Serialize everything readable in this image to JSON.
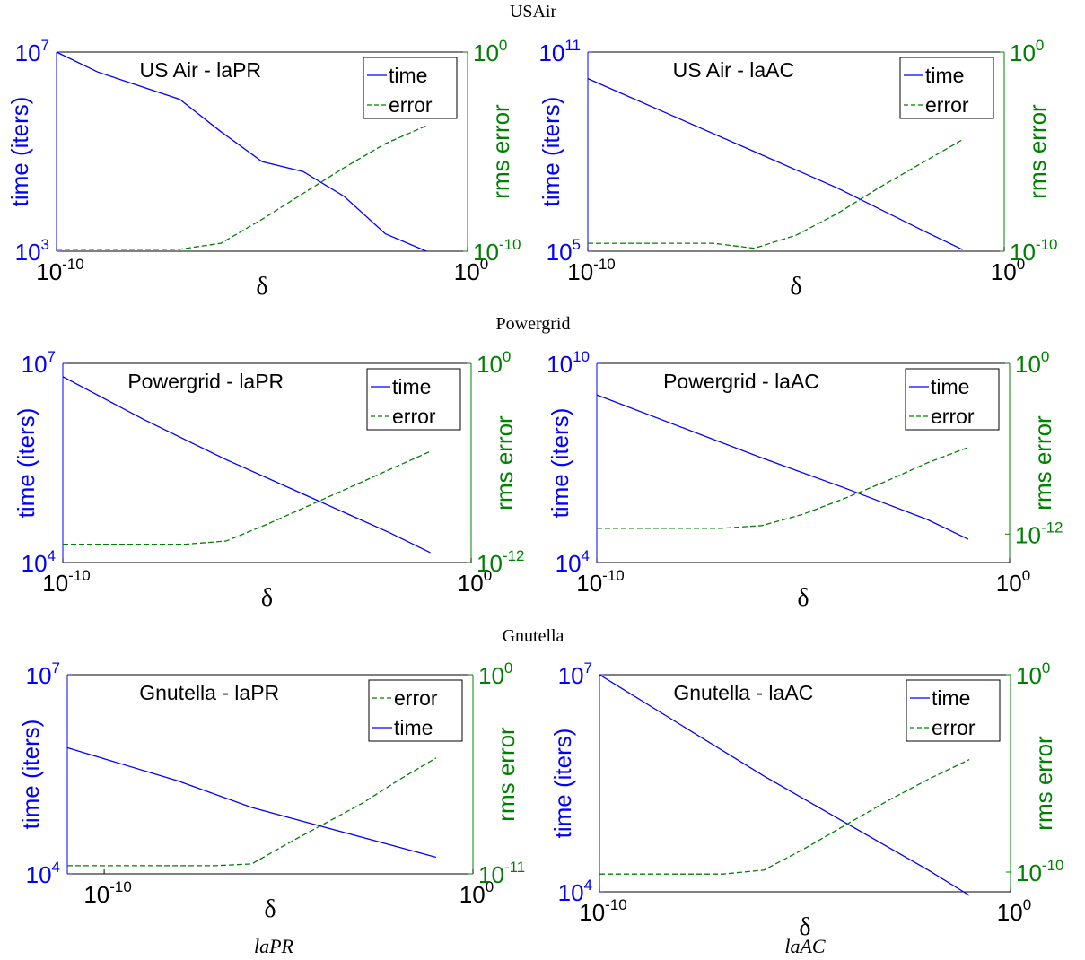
{
  "captions": {
    "columns": [
      "laPR",
      "laAC"
    ]
  },
  "rows": [
    "USAir",
    "Powergrid",
    "Gnutella"
  ],
  "colors": {
    "time": "#0000ff",
    "error": "#008000",
    "axis": "#000000"
  },
  "chart_data": [
    {
      "type": "line",
      "title": "US Air - laPR",
      "row_title": "USAir",
      "xlabel": "δ",
      "ylabel_left": "time (iters)",
      "ylabel_right": "rms error",
      "x_log": true,
      "xlim": [
        -10,
        0
      ],
      "x_ticks": [
        {
          "e": -10,
          "label": "10",
          "sup": "-10"
        },
        {
          "e": 0,
          "label": "10",
          "sup": "0"
        }
      ],
      "y_left_lim": [
        3,
        7
      ],
      "y_left_ticks": [
        {
          "e": 7,
          "label": "10",
          "sup": "7"
        },
        {
          "e": 3,
          "label": "10",
          "sup": "3"
        }
      ],
      "y_right_lim": [
        -10,
        0
      ],
      "y_right_ticks": [
        {
          "e": 0,
          "label": "10",
          "sup": "0"
        },
        {
          "e": -10,
          "label": "10",
          "sup": "-10"
        }
      ],
      "legend": [
        "time",
        "error"
      ],
      "legend_position": "top-right",
      "series": [
        {
          "name": "time",
          "axis": "left",
          "style": "solid",
          "x": [
            -10,
            -9,
            -7,
            -6,
            -5,
            -4,
            -3,
            -2,
            -1
          ],
          "y": [
            7.0,
            6.6,
            6.05,
            5.4,
            4.8,
            4.6,
            4.1,
            3.35,
            3.0
          ]
        },
        {
          "name": "error",
          "axis": "right",
          "style": "dashed",
          "x": [
            -10,
            -7,
            -6,
            -5,
            -4,
            -3,
            -2,
            -1
          ],
          "y": [
            -9.9,
            -9.9,
            -9.6,
            -8.4,
            -7.1,
            -5.8,
            -4.6,
            -3.7
          ]
        }
      ]
    },
    {
      "type": "line",
      "title": "US Air - laAC",
      "row_title": "USAir",
      "xlabel": "δ",
      "ylabel_left": "time (iters)",
      "ylabel_right": "rms error",
      "x_log": true,
      "xlim": [
        -10,
        0
      ],
      "x_ticks": [
        {
          "e": -10,
          "label": "10",
          "sup": "-10"
        },
        {
          "e": 0,
          "label": "10",
          "sup": "0"
        }
      ],
      "y_left_lim": [
        5,
        11
      ],
      "y_left_ticks": [
        {
          "e": 11,
          "label": "10",
          "sup": "11"
        },
        {
          "e": 5,
          "label": "10",
          "sup": "5"
        }
      ],
      "y_right_lim": [
        -10,
        0
      ],
      "y_right_ticks": [
        {
          "e": 0,
          "label": "10",
          "sup": "0"
        },
        {
          "e": -10,
          "label": "10",
          "sup": "-10"
        }
      ],
      "legend": [
        "time",
        "error"
      ],
      "legend_position": "top-right",
      "series": [
        {
          "name": "time",
          "axis": "left",
          "style": "solid",
          "x": [
            -10,
            -8,
            -6,
            -4,
            -2,
            -1
          ],
          "y": [
            10.2,
            9.1,
            8.0,
            6.9,
            5.65,
            5.05
          ]
        },
        {
          "name": "error",
          "axis": "right",
          "style": "dashed",
          "x": [
            -10,
            -8,
            -7,
            -6,
            -5,
            -4,
            -3,
            -2,
            -1
          ],
          "y": [
            -9.6,
            -9.6,
            -9.6,
            -9.85,
            -9.2,
            -8.1,
            -6.8,
            -5.6,
            -4.4
          ]
        }
      ]
    },
    {
      "type": "line",
      "title": "Powergrid - laPR",
      "row_title": "Powergrid",
      "xlabel": "δ",
      "ylabel_left": "time (iters)",
      "ylabel_right": "rms error",
      "x_log": true,
      "xlim": [
        -10,
        0
      ],
      "x_ticks": [
        {
          "e": -10,
          "label": "10",
          "sup": "-10"
        },
        {
          "e": 0,
          "label": "10",
          "sup": "0"
        }
      ],
      "y_left_lim": [
        4,
        7
      ],
      "y_left_ticks": [
        {
          "e": 7,
          "label": "10",
          "sup": "7"
        },
        {
          "e": 4,
          "label": "10",
          "sup": "4"
        }
      ],
      "y_right_lim": [
        -12,
        0
      ],
      "y_right_ticks": [
        {
          "e": 0,
          "label": "10",
          "sup": "0"
        },
        {
          "e": -12,
          "label": "10",
          "sup": "-12"
        }
      ],
      "legend": [
        "time",
        "error"
      ],
      "legend_position": "top-right",
      "series": [
        {
          "name": "time",
          "axis": "left",
          "style": "solid",
          "x": [
            -10,
            -8,
            -6,
            -4,
            -2,
            -1
          ],
          "y": [
            6.8,
            6.15,
            5.55,
            5.0,
            4.45,
            4.15
          ]
        },
        {
          "name": "error",
          "axis": "right",
          "style": "dashed",
          "x": [
            -10,
            -7,
            -6,
            -5,
            -4,
            -3,
            -2,
            -1
          ],
          "y": [
            -10.9,
            -10.9,
            -10.7,
            -9.7,
            -8.6,
            -7.5,
            -6.4,
            -5.3
          ]
        }
      ]
    },
    {
      "type": "line",
      "title": "Powergrid - laAC",
      "row_title": "Powergrid",
      "xlabel": "δ",
      "ylabel_left": "time (iters)",
      "ylabel_right": "rms error",
      "x_log": true,
      "xlim": [
        -10,
        0
      ],
      "x_ticks": [
        {
          "e": -10,
          "label": "10",
          "sup": "-10"
        },
        {
          "e": 0,
          "label": "10",
          "sup": "0"
        }
      ],
      "y_left_lim": [
        4,
        10
      ],
      "y_left_ticks": [
        {
          "e": 10,
          "label": "10",
          "sup": "10"
        },
        {
          "e": 4,
          "label": "10",
          "sup": "4"
        }
      ],
      "y_right_lim": [
        -14,
        0
      ],
      "y_right_ticks": [
        {
          "e": 0,
          "label": "10",
          "sup": "0"
        },
        {
          "e": -12,
          "label": "10",
          "sup": "-12"
        }
      ],
      "legend": [
        "time",
        "error"
      ],
      "legend_position": "top-right",
      "series": [
        {
          "name": "time",
          "axis": "left",
          "style": "solid",
          "x": [
            -10,
            -8,
            -6,
            -4,
            -2,
            -1
          ],
          "y": [
            9.05,
            8.1,
            7.15,
            6.25,
            5.3,
            4.7
          ]
        },
        {
          "name": "error",
          "axis": "right",
          "style": "dashed",
          "x": [
            -10,
            -7,
            -6,
            -5,
            -4,
            -3,
            -2,
            -1
          ],
          "y": [
            -11.6,
            -11.6,
            -11.4,
            -10.6,
            -9.5,
            -8.3,
            -7.0,
            -5.9
          ]
        }
      ]
    },
    {
      "type": "line",
      "title": "Gnutella - laPR",
      "row_title": "Gnutella",
      "xlabel": "δ",
      "ylabel_left": "time (iters)",
      "ylabel_right": "rms error",
      "x_log": true,
      "xlim": [
        -11,
        0
      ],
      "x_ticks": [
        {
          "e": -10,
          "label": "10",
          "sup": "-10"
        },
        {
          "e": 0,
          "label": "10",
          "sup": "0"
        }
      ],
      "y_left_lim": [
        4,
        7
      ],
      "y_left_ticks": [
        {
          "e": 7,
          "label": "10",
          "sup": "7"
        },
        {
          "e": 4,
          "label": "10",
          "sup": "4"
        }
      ],
      "y_right_lim": [
        -11,
        0
      ],
      "y_right_ticks": [
        {
          "e": 0,
          "label": "10",
          "sup": "0"
        },
        {
          "e": -11,
          "label": "10",
          "sup": "-11"
        }
      ],
      "legend": [
        "error",
        "time"
      ],
      "legend_position": "top-right",
      "series": [
        {
          "name": "error",
          "axis": "right",
          "style": "dashed",
          "x": [
            -11,
            -7,
            -6,
            -5,
            -4,
            -3,
            -2,
            -1
          ],
          "y": [
            -10.55,
            -10.55,
            -10.45,
            -9.3,
            -8.2,
            -7.1,
            -5.8,
            -4.6
          ]
        },
        {
          "name": "time",
          "axis": "left",
          "style": "solid",
          "x": [
            -11,
            -8,
            -6,
            -4,
            -2,
            -1
          ],
          "y": [
            5.9,
            5.4,
            5.0,
            4.7,
            4.4,
            4.25
          ]
        }
      ]
    },
    {
      "type": "line",
      "title": "Gnutella - laAC",
      "row_title": "Gnutella",
      "xlabel": "δ",
      "ylabel_left": "time (iters)",
      "ylabel_right": "rms error",
      "x_log": true,
      "xlim": [
        -10,
        0
      ],
      "x_ticks": [
        {
          "e": -10,
          "label": "10",
          "sup": "-10"
        },
        {
          "e": 0,
          "label": "10",
          "sup": "0"
        }
      ],
      "y_left_lim": [
        4,
        7
      ],
      "y_left_ticks": [
        {
          "e": 7,
          "label": "10",
          "sup": "7"
        },
        {
          "e": 4,
          "label": "10",
          "sup": "4"
        }
      ],
      "y_right_lim": [
        -11,
        0
      ],
      "y_right_ticks": [
        {
          "e": 0,
          "label": "10",
          "sup": "0"
        },
        {
          "e": -10,
          "label": "10",
          "sup": "-10"
        }
      ],
      "legend": [
        "time",
        "error"
      ],
      "legend_position": "top-right",
      "series": [
        {
          "name": "time",
          "axis": "left",
          "style": "solid",
          "x": [
            -10,
            -8,
            -6,
            -4,
            -2,
            -1
          ],
          "y": [
            7.0,
            6.3,
            5.6,
            4.95,
            4.3,
            3.95
          ]
        },
        {
          "name": "error",
          "axis": "right",
          "style": "dashed",
          "x": [
            -10,
            -7,
            -6,
            -5,
            -4,
            -3,
            -2,
            -1
          ],
          "y": [
            -10.1,
            -10.1,
            -9.9,
            -8.8,
            -7.6,
            -6.4,
            -5.3,
            -4.3
          ]
        }
      ]
    }
  ]
}
